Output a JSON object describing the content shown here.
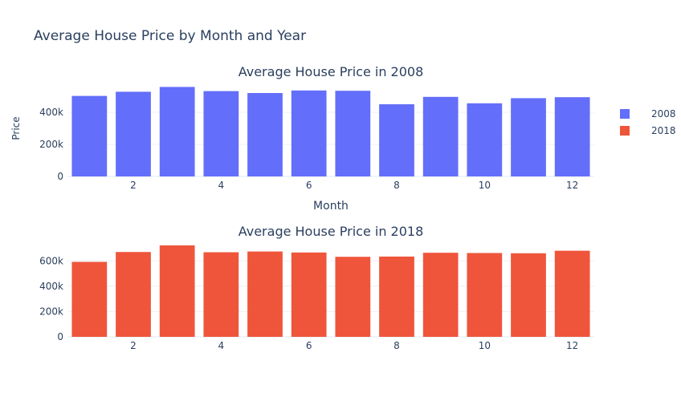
{
  "title": "Average House Price by Month and Year",
  "legend": {
    "placement": "top-right",
    "items": [
      {
        "label": "2008",
        "color": "#636efa"
      },
      {
        "label": "2018",
        "color": "#ef553b"
      }
    ]
  },
  "chart_data": [
    {
      "type": "bar",
      "title": "Average House Price in 2008",
      "xlabel": "Month",
      "ylabel": "Price",
      "series_name": "2008",
      "color": "#636efa",
      "x": [
        1,
        2,
        3,
        4,
        5,
        6,
        7,
        8,
        9,
        10,
        11,
        12
      ],
      "values": [
        502000,
        528000,
        558000,
        532000,
        520000,
        536000,
        534000,
        450000,
        496000,
        456000,
        488000,
        494000
      ],
      "ylim": [
        0,
        600000
      ],
      "yticks": [
        0,
        200000,
        400000
      ],
      "ytick_labels": [
        "0",
        "200k",
        "400k"
      ],
      "xticks": [
        2,
        4,
        6,
        8,
        10,
        12
      ],
      "xtick_labels": [
        "2",
        "4",
        "6",
        "8",
        "10",
        "12"
      ],
      "grid": true
    },
    {
      "type": "bar",
      "title": "Average House Price in 2018",
      "xlabel": "",
      "ylabel": "",
      "series_name": "2018",
      "color": "#ef553b",
      "x": [
        1,
        2,
        3,
        4,
        5,
        6,
        7,
        8,
        9,
        10,
        11,
        12
      ],
      "values": [
        592000,
        670000,
        722000,
        668000,
        674000,
        666000,
        632000,
        634000,
        664000,
        662000,
        660000,
        680000
      ],
      "ylim": [
        0,
        760000
      ],
      "yticks": [
        0,
        200000,
        400000,
        600000
      ],
      "ytick_labels": [
        "0",
        "200k",
        "400k",
        "600k"
      ],
      "xticks": [
        2,
        4,
        6,
        8,
        10,
        12
      ],
      "xtick_labels": [
        "2",
        "4",
        "6",
        "8",
        "10",
        "12"
      ],
      "grid": true
    }
  ]
}
